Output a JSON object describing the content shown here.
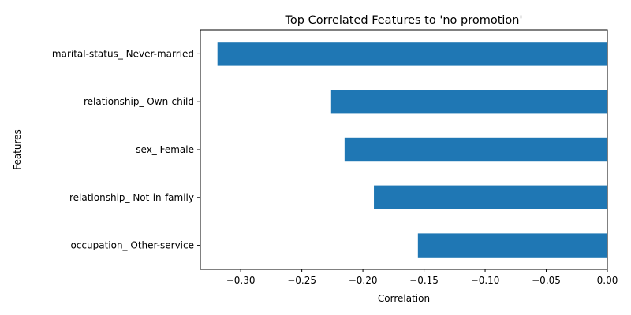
{
  "chart_data": {
    "type": "bar",
    "orientation": "horizontal",
    "title": "Top Correlated Features to 'no promotion'",
    "xlabel": "Correlation",
    "ylabel": "Features",
    "categories": [
      "marital-status_ Never-married",
      "relationship_ Own-child",
      "sex_ Female",
      "relationship_ Not-in-family",
      "occupation_ Other-service"
    ],
    "values": [
      -0.319,
      -0.226,
      -0.215,
      -0.191,
      -0.155
    ],
    "xlim": [
      -0.333,
      0.0
    ],
    "xticks": [
      -0.3,
      -0.25,
      -0.2,
      -0.15,
      -0.1,
      -0.05,
      0.0
    ],
    "xtick_labels": [
      "−0.30",
      "−0.25",
      "−0.20",
      "−0.15",
      "−0.10",
      "−0.05",
      "0.00"
    ],
    "bar_color": "#1f77b4",
    "grid": false,
    "legend": "none"
  }
}
